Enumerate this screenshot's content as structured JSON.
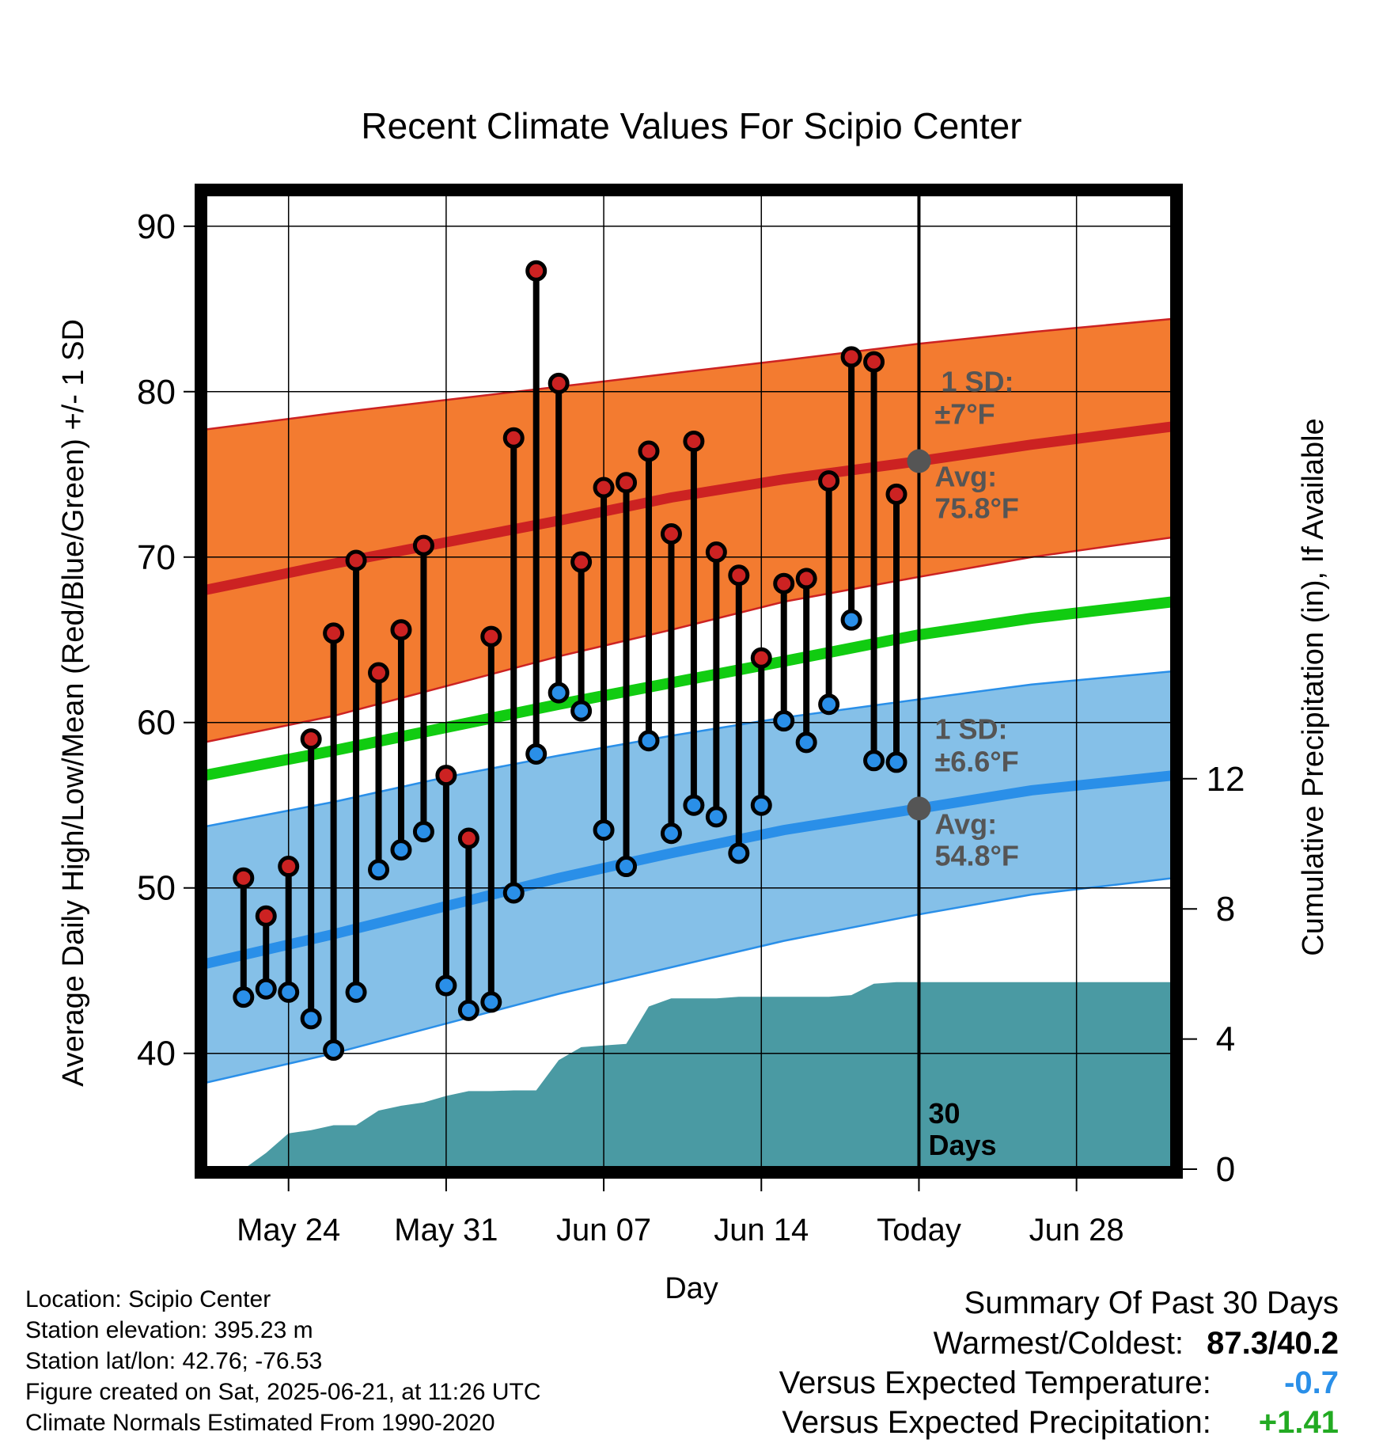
{
  "chart_data": {
    "type": "line",
    "title": "Recent Climate Values For Scipio Center",
    "xlabel": "Day",
    "ylabel": "Average Daily High/Low/Mean (Red/Blue/Green) +/- 1 SD",
    "y2label": "Cumulative Precipitation (in), If Available",
    "ylim": [
      33,
      92
    ],
    "y2lim": [
      0,
      30
    ],
    "xlim": [
      -0.75,
      42.3
    ],
    "x_ticks": [
      {
        "day": 3,
        "label": "May 24"
      },
      {
        "day": 10,
        "label": "May 31"
      },
      {
        "day": 17,
        "label": "Jun 07"
      },
      {
        "day": 24,
        "label": "Jun 14"
      },
      {
        "day": 31,
        "label": "Today"
      },
      {
        "day": 38,
        "label": "Jun 28"
      }
    ],
    "y_ticks": [
      40,
      50,
      60,
      70,
      80,
      90
    ],
    "y2_ticks": [
      0,
      4,
      8,
      12
    ],
    "grid": true,
    "today_day": 31,
    "window_label": "30 Days",
    "normals": {
      "x": [
        -0.75,
        5,
        10,
        15,
        20,
        25,
        31,
        36,
        42.3
      ],
      "high_mean": [
        68.0,
        69.6,
        70.9,
        72.2,
        73.6,
        74.7,
        75.8,
        76.8,
        77.9
      ],
      "high_upper": [
        77.7,
        78.7,
        79.5,
        80.3,
        81.1,
        81.9,
        82.9,
        83.6,
        84.4
      ],
      "high_lower": [
        58.8,
        60.4,
        62.2,
        64.0,
        65.6,
        67.3,
        68.8,
        70.0,
        71.2
      ],
      "mean_line": [
        56.8,
        58.3,
        59.7,
        61.1,
        62.4,
        63.7,
        65.3,
        66.3,
        67.3
      ],
      "low_mean": [
        45.4,
        47.2,
        48.9,
        50.6,
        52.1,
        53.5,
        54.8,
        55.9,
        56.8
      ],
      "low_upper": [
        53.7,
        55.2,
        56.7,
        58.0,
        59.2,
        60.3,
        61.4,
        62.3,
        63.1
      ],
      "low_lower": [
        38.2,
        40.0,
        41.8,
        43.6,
        45.2,
        46.8,
        48.4,
        49.6,
        50.6
      ]
    },
    "annotations": {
      "high": {
        "sd_label": "1 SD:",
        "sd_value": "±7°F",
        "avg_label": "Avg:",
        "avg_value": "75.8°F",
        "avg": 75.8
      },
      "low": {
        "sd_label": "1 SD:",
        "sd_value": "±6.6°F",
        "avg_label": "Avg:",
        "avg_value": "54.8°F",
        "avg": 54.8
      }
    },
    "series": [
      {
        "name": "High",
        "color": "#cc2222",
        "x": [
          1,
          2,
          3,
          4,
          5,
          6,
          7,
          8,
          9,
          10,
          11,
          12,
          13,
          14,
          15,
          16,
          17,
          18,
          19,
          20,
          21,
          22,
          23,
          24,
          25,
          26,
          27,
          28,
          29,
          30
        ],
        "values": [
          50.6,
          48.3,
          51.3,
          59.0,
          65.4,
          69.8,
          63.0,
          65.6,
          70.7,
          56.8,
          53.0,
          65.2,
          77.2,
          87.3,
          80.5,
          69.7,
          74.2,
          74.5,
          76.4,
          71.4,
          77.0,
          70.3,
          68.9,
          63.9,
          68.4,
          68.7,
          74.6,
          82.1,
          81.8,
          73.8
        ]
      },
      {
        "name": "Low",
        "color": "#2a8fe8",
        "x": [
          1,
          2,
          3,
          4,
          5,
          6,
          7,
          8,
          9,
          10,
          11,
          12,
          13,
          14,
          15,
          16,
          17,
          18,
          19,
          20,
          21,
          22,
          23,
          24,
          25,
          26,
          27,
          28,
          29,
          30
        ],
        "values": [
          43.4,
          43.9,
          43.7,
          42.1,
          40.2,
          43.7,
          51.1,
          52.3,
          53.4,
          44.1,
          42.6,
          43.1,
          49.7,
          58.1,
          61.8,
          60.7,
          53.5,
          51.3,
          58.9,
          53.3,
          55.0,
          54.3,
          52.1,
          55.0,
          60.1,
          58.8,
          61.1,
          66.2,
          57.7,
          57.6
        ]
      },
      {
        "name": "Precipitation",
        "color": "#4a9aa3",
        "x": [
          1,
          2,
          3,
          4,
          5,
          6,
          7,
          8,
          9,
          10,
          11,
          12,
          13,
          14,
          15,
          16,
          17,
          18,
          19,
          20,
          21,
          22,
          23,
          24,
          25,
          26,
          27,
          28,
          29,
          30,
          31,
          42.3
        ],
        "values": [
          0,
          0.5,
          1.1,
          1.2,
          1.35,
          1.35,
          1.8,
          1.95,
          2.05,
          2.25,
          2.4,
          2.4,
          2.42,
          2.42,
          3.35,
          3.75,
          3.8,
          3.85,
          5.0,
          5.25,
          5.25,
          5.25,
          5.3,
          5.3,
          5.3,
          5.3,
          5.3,
          5.35,
          5.7,
          5.75,
          5.75,
          5.75
        ]
      }
    ]
  },
  "info": {
    "location": "Location: Scipio Center",
    "elevation": "Station elevation: 395.23 m",
    "latlon": "Station lat/lon: 42.76; -76.53",
    "created": "Figure created on Sat, 2025-06-21, at 11:26 UTC",
    "normals": "Climate Normals Estimated From 1990-2020"
  },
  "summary": {
    "heading": "Summary Of Past 30 Days",
    "warmest_label": "Warmest/Coldest:",
    "warmest_value": "87.3/40.2",
    "temp_label": "Versus Expected Temperature:",
    "temp_value": "-0.7",
    "temp_color": "#2a8fe8",
    "precip_label": "Versus Expected Precipitation:",
    "precip_value": "+1.41",
    "precip_color": "#22aa22"
  },
  "colors": {
    "high_band": "#f37b30",
    "high_line": "#cc2222",
    "low_band": "#85c0e8",
    "low_line": "#2a8fe8",
    "mean_line": "#11cc11",
    "precip": "#4a9aa3",
    "annotation": "#555555"
  }
}
